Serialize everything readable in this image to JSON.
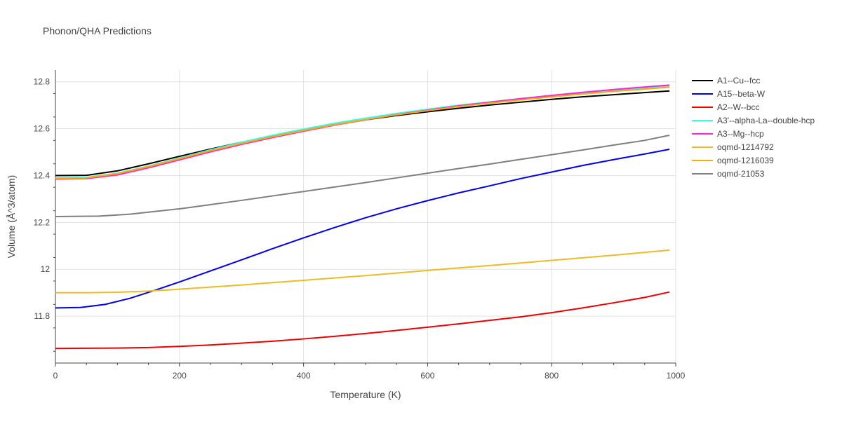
{
  "chart_data": {
    "type": "line",
    "title": "Phonon/QHA Predictions",
    "xlabel": "Temperature (K)",
    "ylabel": "Volume (Å^3/atom)",
    "xlim": [
      0,
      1000
    ],
    "ylim": [
      11.6,
      12.85
    ],
    "xticks": [
      0,
      200,
      400,
      600,
      800,
      1000
    ],
    "yticks": [
      11.8,
      12,
      12.2,
      12.4,
      12.6,
      12.8
    ],
    "ytick_labels": [
      "11.8",
      "12",
      "12.2",
      "12.4",
      "12.6",
      "12.8"
    ],
    "grid": true,
    "legend_position": "right",
    "series": [
      {
        "name": "A1--Cu--fcc",
        "color": "#000000",
        "x": [
          0,
          50,
          100,
          150,
          200,
          250,
          300,
          350,
          400,
          450,
          500,
          550,
          600,
          650,
          700,
          750,
          800,
          850,
          900,
          950,
          990
        ],
        "y": [
          12.4,
          12.401,
          12.42,
          12.45,
          12.482,
          12.513,
          12.542,
          12.568,
          12.593,
          12.617,
          12.638,
          12.656,
          12.672,
          12.687,
          12.701,
          12.713,
          12.725,
          12.736,
          12.745,
          12.754,
          12.761
        ]
      },
      {
        "name": "A15--beta-W",
        "color": "#0000ee",
        "x": [
          0,
          40,
          80,
          120,
          160,
          200,
          250,
          300,
          350,
          400,
          450,
          500,
          550,
          600,
          650,
          700,
          750,
          800,
          850,
          900,
          950,
          990
        ],
        "y": [
          11.835,
          11.837,
          11.85,
          11.876,
          11.91,
          11.946,
          11.993,
          12.04,
          12.088,
          12.134,
          12.178,
          12.22,
          12.258,
          12.293,
          12.326,
          12.356,
          12.387,
          12.415,
          12.443,
          12.468,
          12.492,
          12.512
        ]
      },
      {
        "name": "A2--W--bcc",
        "color": "#ee0000",
        "x": [
          0,
          50,
          100,
          150,
          200,
          250,
          300,
          350,
          400,
          450,
          500,
          550,
          600,
          650,
          700,
          750,
          800,
          850,
          900,
          950,
          990
        ],
        "y": [
          11.662,
          11.663,
          11.664,
          11.666,
          11.671,
          11.677,
          11.685,
          11.693,
          11.703,
          11.714,
          11.726,
          11.739,
          11.753,
          11.767,
          11.782,
          11.797,
          11.815,
          11.835,
          11.857,
          11.88,
          11.903
        ]
      },
      {
        "name": "A3'--alpha-La--double-hcp",
        "color": "#33ffee",
        "x": [
          0,
          50,
          100,
          150,
          200,
          250,
          300,
          350,
          400,
          450,
          500,
          550,
          600,
          650,
          700,
          750,
          800,
          850,
          900,
          950,
          990
        ],
        "y": [
          12.39,
          12.392,
          12.41,
          12.44,
          12.475,
          12.51,
          12.542,
          12.572,
          12.598,
          12.623,
          12.645,
          12.665,
          12.683,
          12.7,
          12.714,
          12.728,
          12.741,
          12.753,
          12.764,
          12.774,
          12.782
        ]
      },
      {
        "name": "A3--Mg--hcp",
        "color": "#ff22dd",
        "x": [
          0,
          50,
          100,
          150,
          200,
          250,
          300,
          350,
          400,
          450,
          500,
          550,
          600,
          650,
          700,
          750,
          800,
          850,
          900,
          950,
          990
        ],
        "y": [
          12.385,
          12.387,
          12.403,
          12.433,
          12.467,
          12.501,
          12.533,
          12.562,
          12.589,
          12.615,
          12.638,
          12.66,
          12.679,
          12.697,
          12.713,
          12.728,
          12.742,
          12.755,
          12.767,
          12.778,
          12.786
        ]
      },
      {
        "name": "oqmd-1214792",
        "color": "#eebb22",
        "x": [
          0,
          50,
          100,
          150,
          200,
          250,
          300,
          350,
          400,
          450,
          500,
          550,
          600,
          650,
          700,
          750,
          800,
          850,
          900,
          950,
          990
        ],
        "y": [
          11.9,
          11.9,
          11.902,
          11.907,
          11.915,
          11.924,
          11.933,
          11.943,
          11.953,
          11.963,
          11.973,
          11.984,
          11.995,
          12.006,
          12.016,
          12.027,
          12.038,
          12.049,
          12.06,
          12.072,
          12.082
        ]
      },
      {
        "name": "oqmd-1216039",
        "color": "#ffaa00",
        "x": [
          0,
          50,
          100,
          150,
          200,
          250,
          300,
          350,
          400,
          450,
          500,
          550,
          600,
          650,
          700,
          750,
          800,
          850,
          900,
          950,
          990
        ],
        "y": [
          12.388,
          12.39,
          12.408,
          12.438,
          12.472,
          12.506,
          12.537,
          12.566,
          12.592,
          12.617,
          12.639,
          12.659,
          12.677,
          12.694,
          12.709,
          12.723,
          12.736,
          12.748,
          12.759,
          12.769,
          12.777
        ]
      },
      {
        "name": "oqmd-21053",
        "color": "#7f7f7f",
        "x": [
          0,
          70,
          120,
          200,
          250,
          300,
          350,
          400,
          450,
          500,
          550,
          600,
          650,
          700,
          750,
          800,
          850,
          900,
          950,
          990
        ],
        "y": [
          12.225,
          12.227,
          12.235,
          12.258,
          12.276,
          12.294,
          12.313,
          12.332,
          12.351,
          12.37,
          12.39,
          12.41,
          12.43,
          12.449,
          12.469,
          12.489,
          12.509,
          12.53,
          12.55,
          12.572
        ]
      }
    ]
  }
}
